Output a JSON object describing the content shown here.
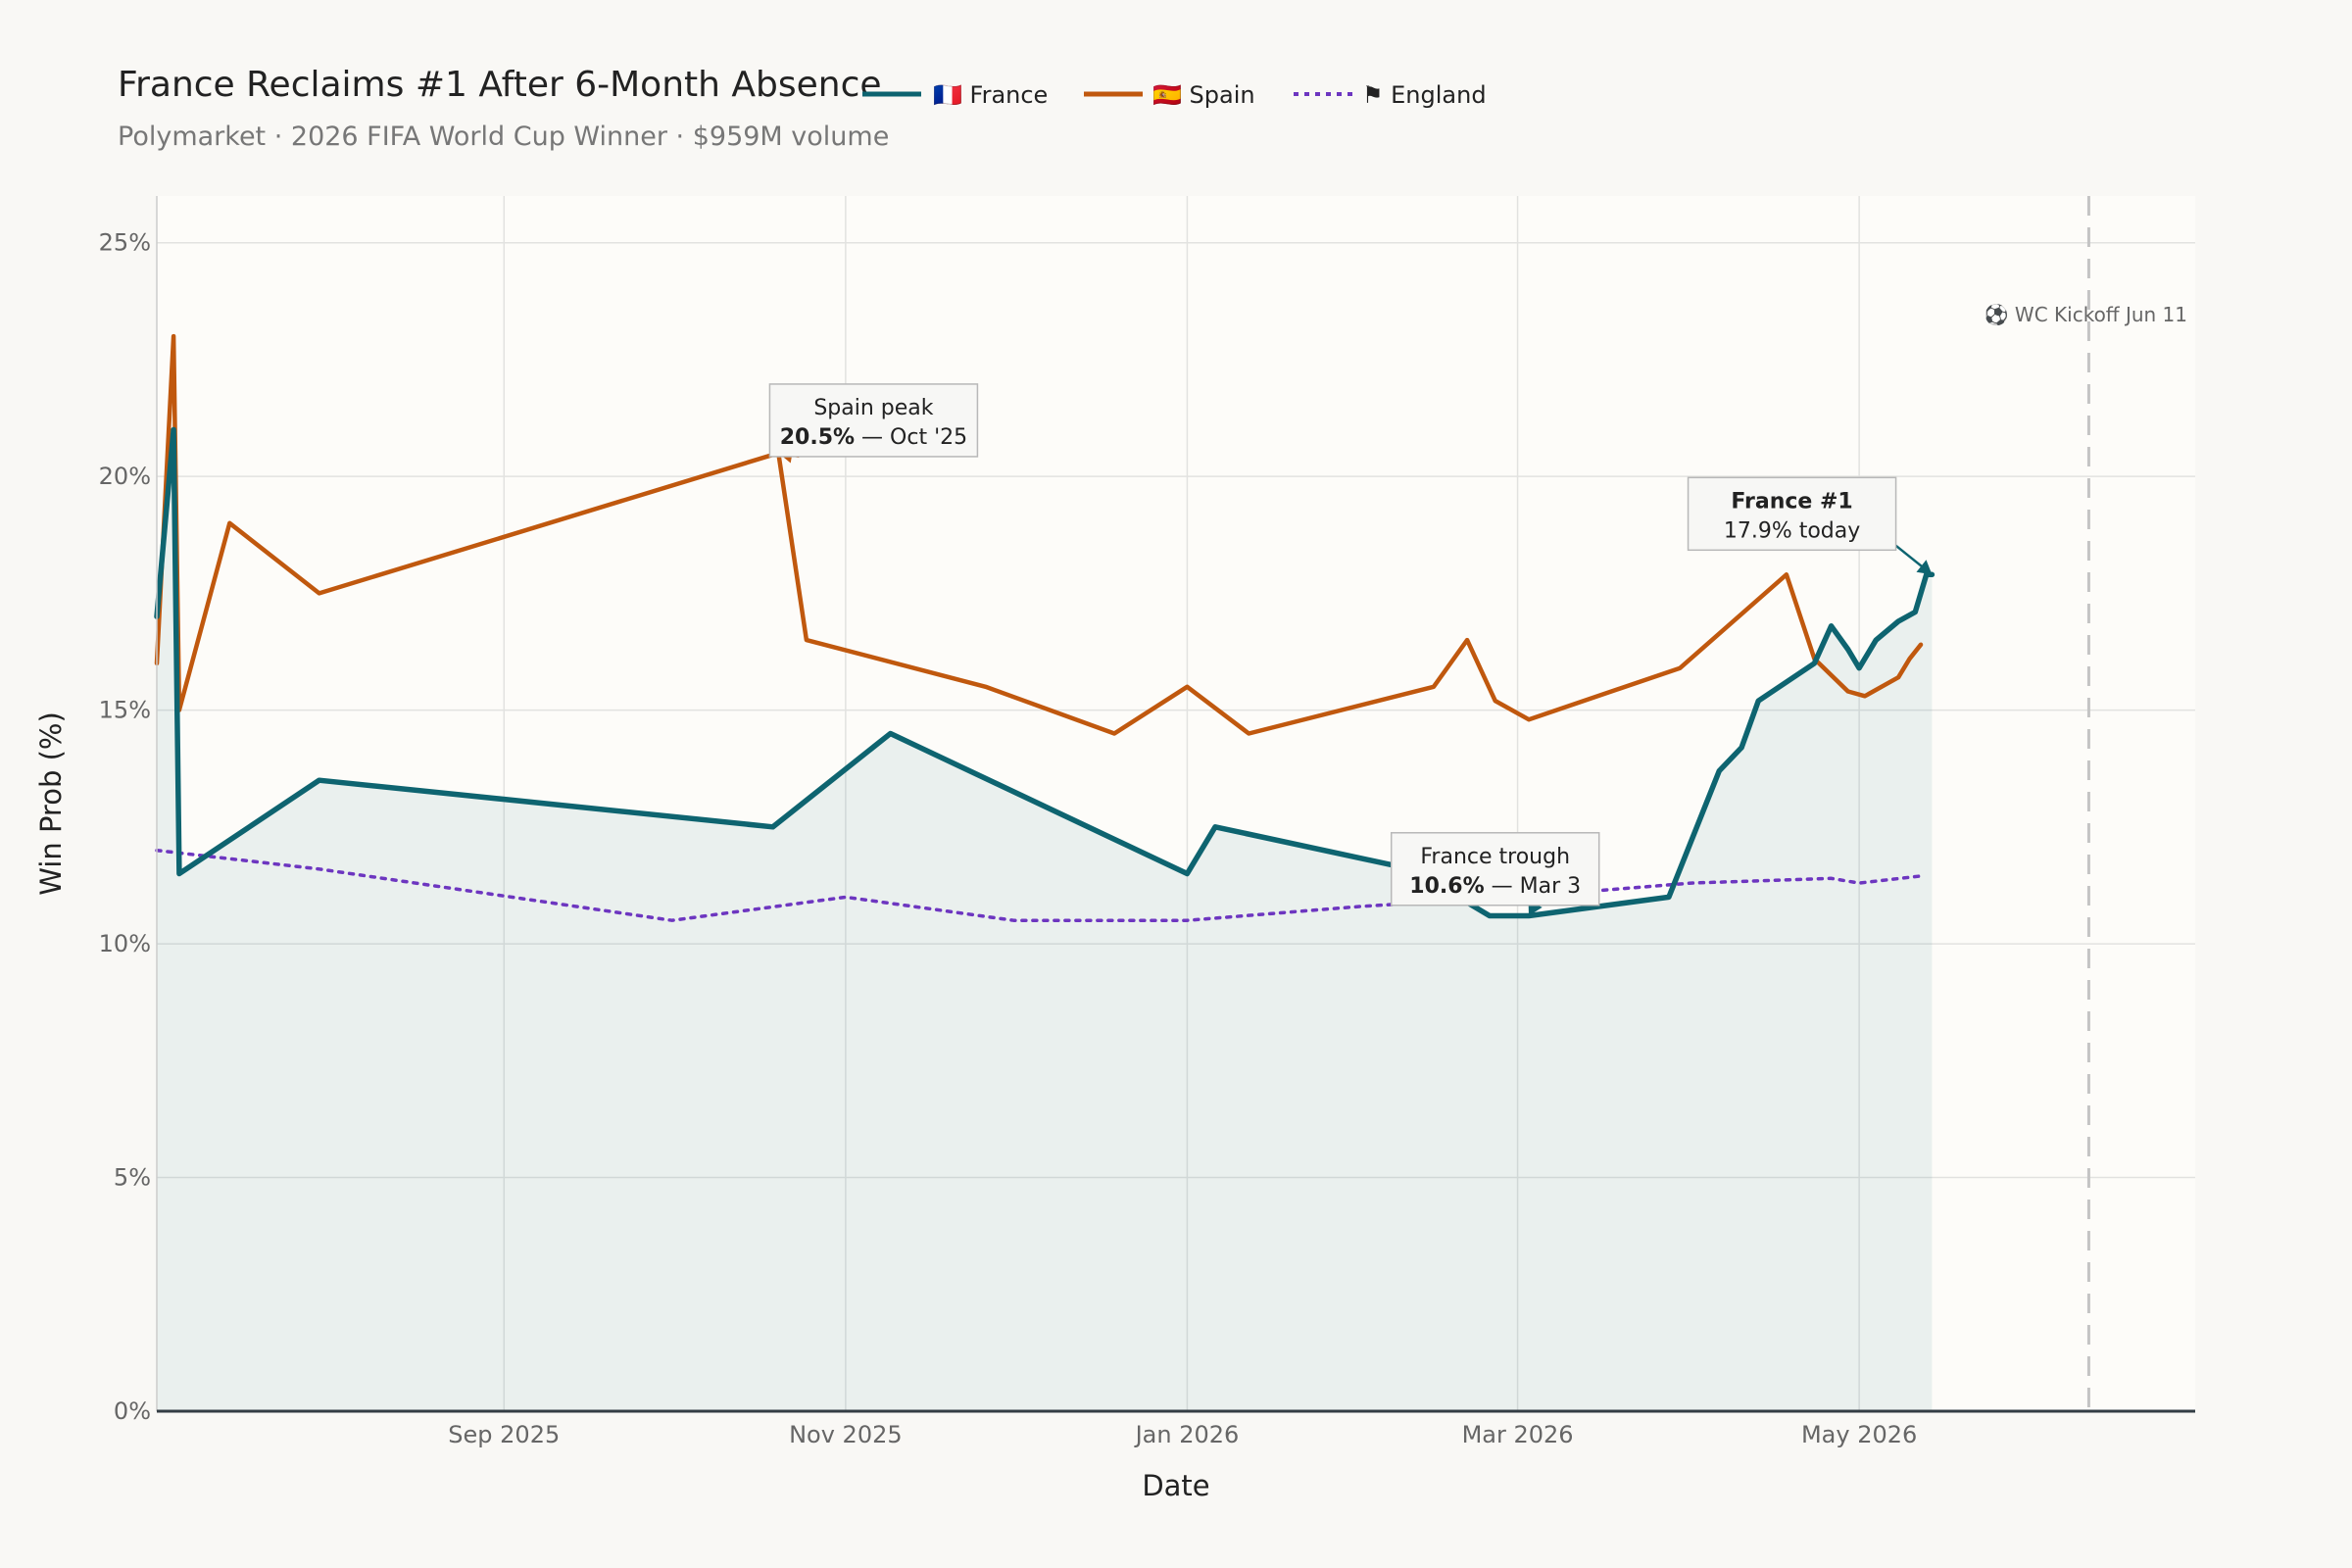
{
  "title": "France Reclaims #1 After 6-Month Absence",
  "subtitle": "Polymarket · 2026 FIFA World Cup Winner · $959M volume",
  "legend": [
    {
      "icon": "france-flag-icon",
      "label": "🇫🇷 France"
    },
    {
      "icon": "spain-flag-icon",
      "label": "🇪🇸 Spain"
    },
    {
      "icon": "england-flag-icon",
      "label": "⚑ England"
    }
  ],
  "colors": {
    "France": "#0e6470",
    "Spain": "#c0580e",
    "England": "#6d36c0",
    "background": "#f9f8f5",
    "plot_background": "#fdfcf9"
  },
  "chart_data": {
    "type": "line",
    "xlabel": "Date",
    "ylabel": "Win Prob (%)",
    "xlim": [
      "2025-07-01",
      "2026-06-30"
    ],
    "ylim": [
      0,
      26
    ],
    "yticks": [
      0,
      5,
      10,
      15,
      20,
      25
    ],
    "ytick_labels": [
      "0%",
      "5%",
      "10%",
      "15%",
      "20%",
      "25%"
    ],
    "xticks": [
      "2025-09-01",
      "2025-11-01",
      "2026-01-01",
      "2026-03-01",
      "2026-05-01"
    ],
    "xtick_labels": [
      "Sep 2025",
      "Nov 2025",
      "Jan 2026",
      "Mar 2026",
      "May 2026"
    ],
    "grid": true,
    "legend_position": "top",
    "series": [
      {
        "name": "France",
        "style": "solid",
        "fill": true,
        "points": [
          [
            "2025-07-01",
            17
          ],
          [
            "2025-07-04",
            21
          ],
          [
            "2025-07-05",
            11.5
          ],
          [
            "2025-07-30",
            13.5
          ],
          [
            "2025-10-19",
            12.5
          ],
          [
            "2025-11-09",
            14.5
          ],
          [
            "2026-01-01",
            11.5
          ],
          [
            "2026-01-06",
            12.5
          ],
          [
            "2026-02-10",
            11.6
          ],
          [
            "2026-02-24",
            10.6
          ],
          [
            "2026-03-03",
            10.6
          ],
          [
            "2026-03-28",
            11
          ],
          [
            "2026-04-06",
            13.7
          ],
          [
            "2026-04-10",
            14.2
          ],
          [
            "2026-04-13",
            15.2
          ],
          [
            "2026-04-23",
            16
          ],
          [
            "2026-04-26",
            16.8
          ],
          [
            "2026-04-29",
            16.3
          ],
          [
            "2026-05-01",
            15.9
          ],
          [
            "2026-05-04",
            16.5
          ],
          [
            "2026-05-08",
            16.9
          ],
          [
            "2026-05-11",
            17.1
          ],
          [
            "2026-05-13",
            17.9
          ],
          [
            "2026-05-14",
            17.9
          ]
        ]
      },
      {
        "name": "Spain",
        "style": "solid",
        "fill": false,
        "points": [
          [
            "2025-07-01",
            16
          ],
          [
            "2025-07-04",
            23
          ],
          [
            "2025-07-05",
            15
          ],
          [
            "2025-07-14",
            19
          ],
          [
            "2025-07-30",
            17.5
          ],
          [
            "2025-10-20",
            20.5
          ],
          [
            "2025-10-25",
            16.5
          ],
          [
            "2025-11-26",
            15.5
          ],
          [
            "2025-12-19",
            14.5
          ],
          [
            "2026-01-01",
            15.5
          ],
          [
            "2026-01-12",
            14.5
          ],
          [
            "2026-02-14",
            15.5
          ],
          [
            "2026-02-20",
            16.5
          ],
          [
            "2026-02-25",
            15.2
          ],
          [
            "2026-03-03",
            14.8
          ],
          [
            "2026-03-30",
            15.9
          ],
          [
            "2026-04-18",
            17.9
          ],
          [
            "2026-04-23",
            16.1
          ],
          [
            "2026-04-29",
            15.4
          ],
          [
            "2026-05-02",
            15.3
          ],
          [
            "2026-05-08",
            15.7
          ],
          [
            "2026-05-10",
            16.1
          ],
          [
            "2026-05-12",
            16.4
          ]
        ]
      },
      {
        "name": "England",
        "style": "dotted",
        "fill": false,
        "points": [
          [
            "2025-07-01",
            12
          ],
          [
            "2025-07-30",
            11.6
          ],
          [
            "2025-10-01",
            10.5
          ],
          [
            "2025-11-01",
            11
          ],
          [
            "2025-11-31",
            10.5
          ],
          [
            "2026-01-01",
            10.5
          ],
          [
            "2026-02-01",
            10.8
          ],
          [
            "2026-03-01",
            11
          ],
          [
            "2026-04-01",
            11.3
          ],
          [
            "2026-04-26",
            11.4
          ],
          [
            "2026-05-01",
            11.3
          ],
          [
            "2026-05-12",
            11.45
          ]
        ]
      }
    ],
    "annotations": [
      {
        "title": "Spain peak",
        "value": "20.5%",
        "rest": " — Oct '25",
        "series": "Spain",
        "x": "2025-10-20",
        "y": 20.5,
        "label_x": "2025-11-06",
        "label_y": 21.2
      },
      {
        "title": "France trough",
        "value": "10.6%",
        "rest": " — Mar 3",
        "series": "France",
        "x": "2026-03-03",
        "y": 10.6,
        "label_x": "2026-02-25",
        "label_y": 11.6
      },
      {
        "title": "France #1",
        "value": "",
        "rest": "17.9% today",
        "series": "France",
        "x": "2026-05-14",
        "y": 17.9,
        "label_x": "2026-04-19",
        "label_y": 19.2,
        "bold_title": true
      }
    ],
    "marker": {
      "date": "2026-06-11",
      "label": "⚽ WC Kickoff Jun 11"
    }
  }
}
